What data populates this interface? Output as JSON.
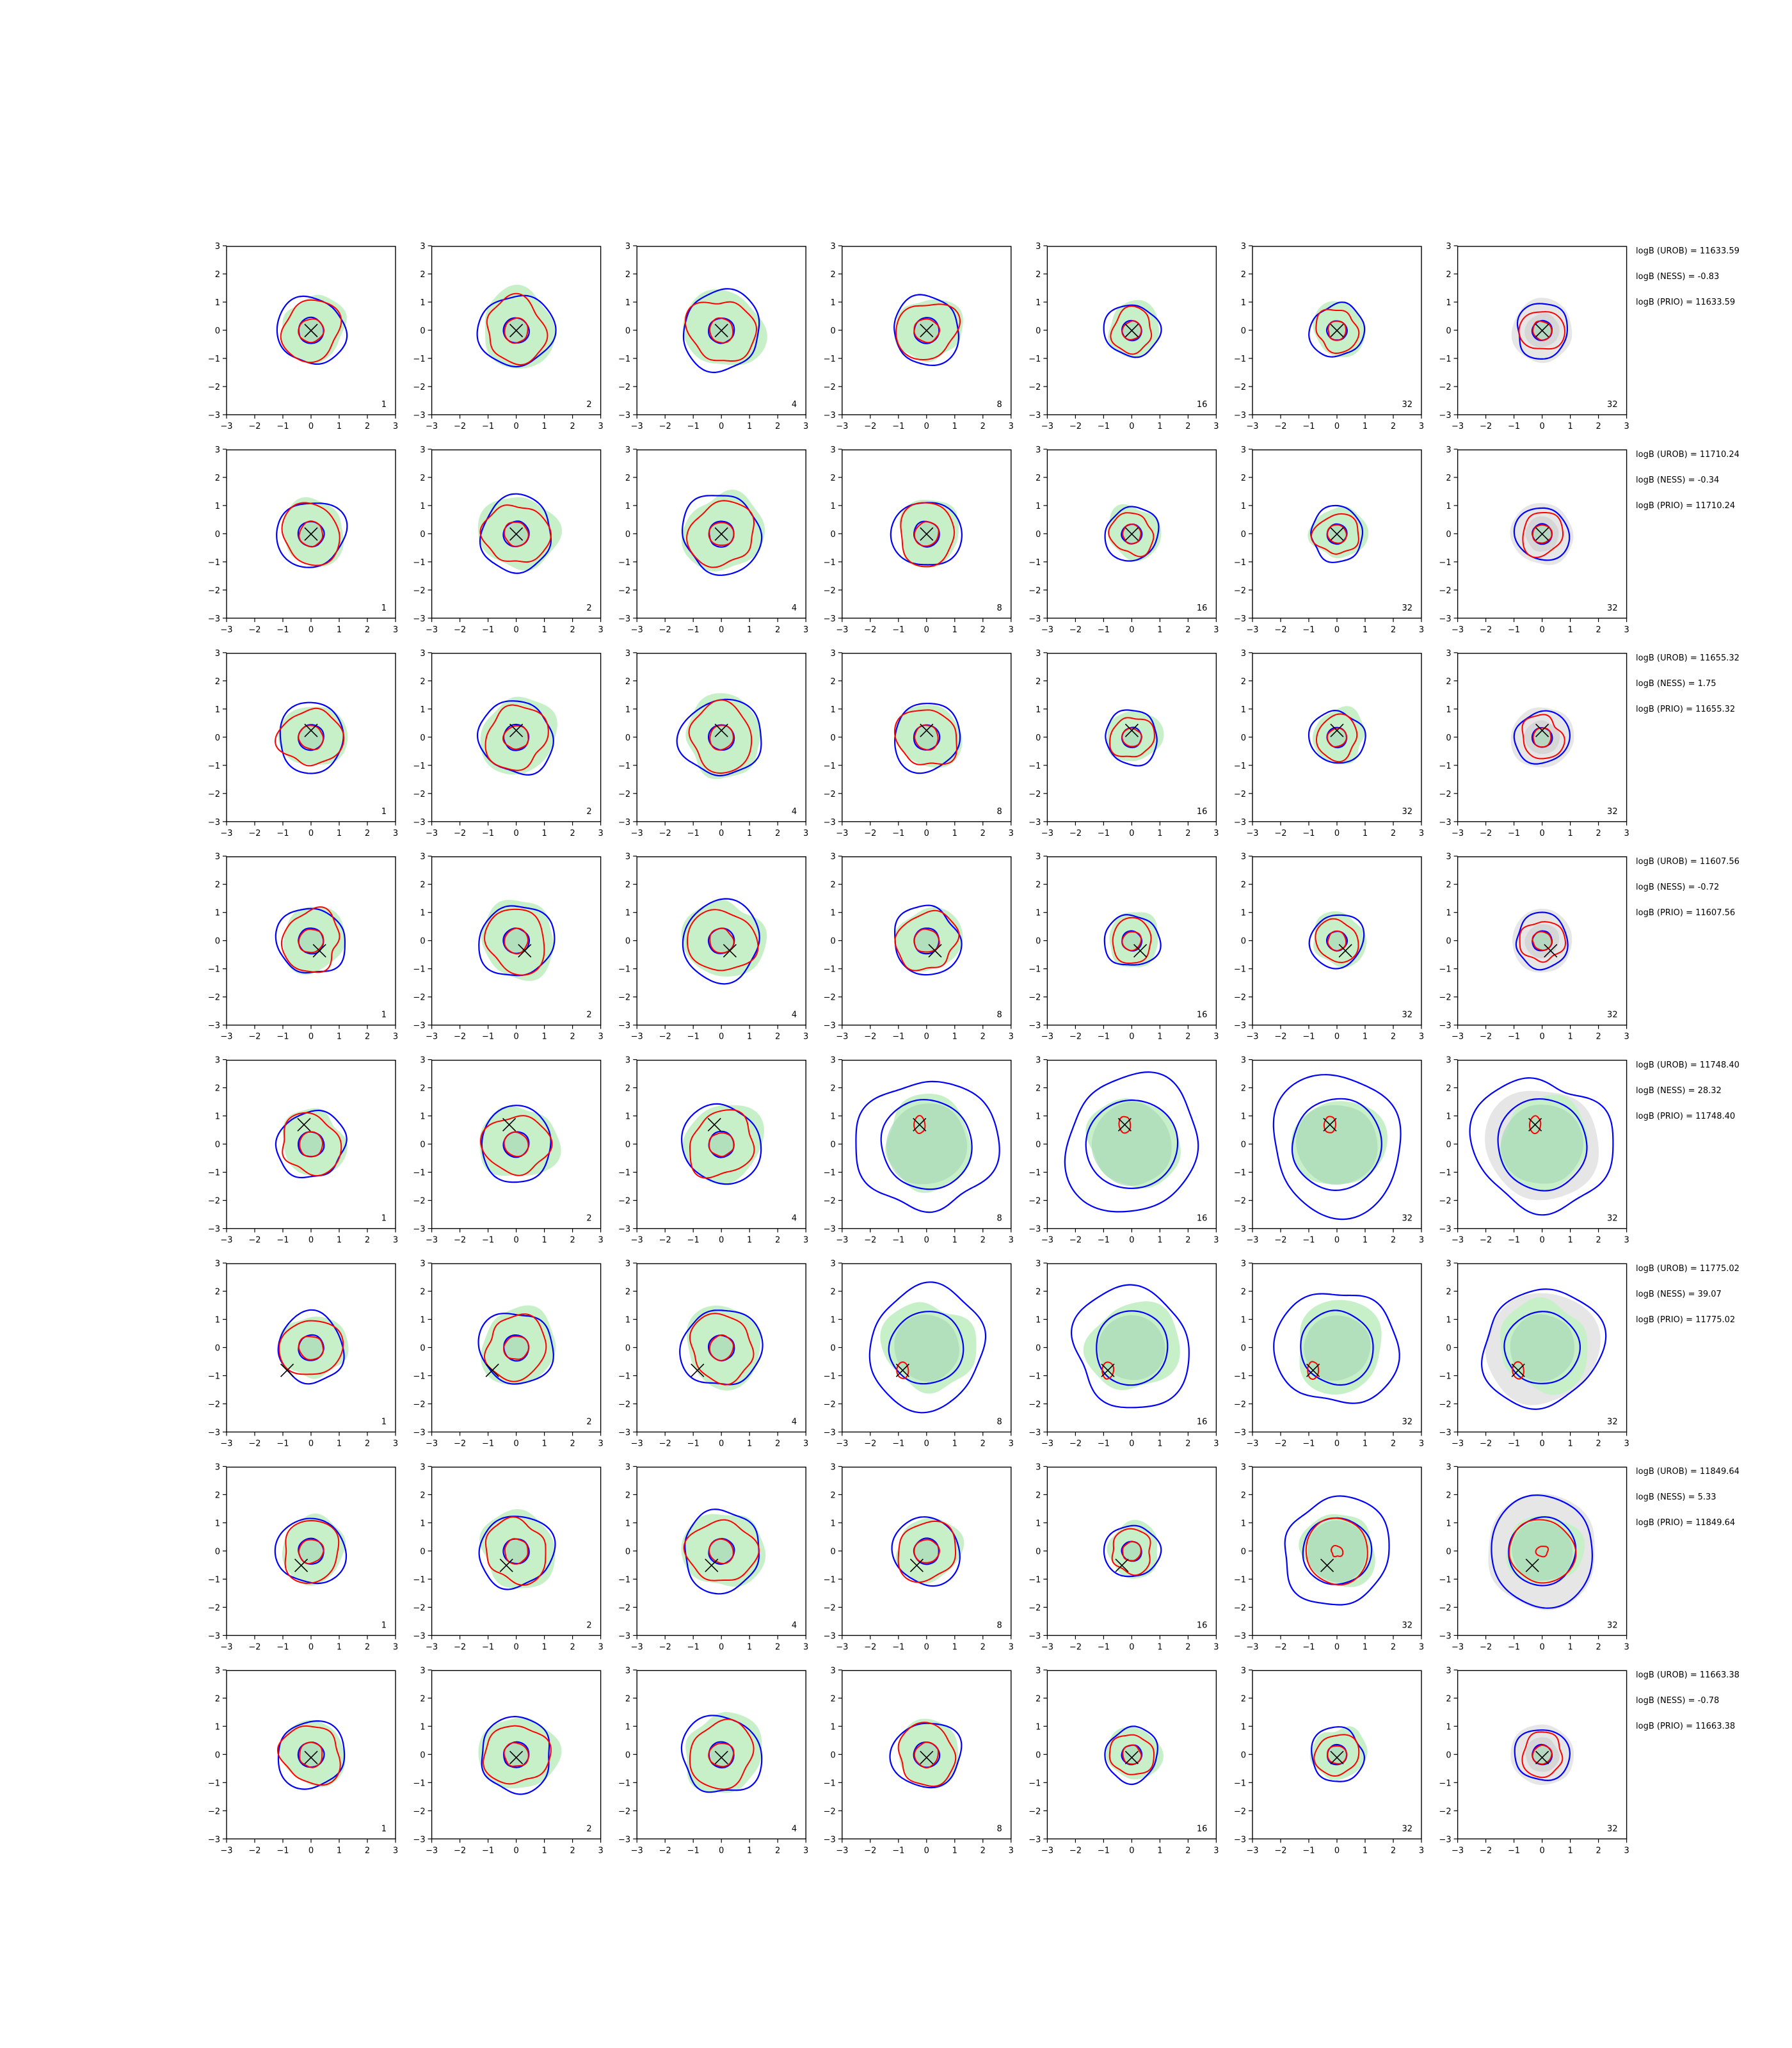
{
  "chart_data": {
    "type": "contour-grid",
    "rows": 8,
    "cols": 7,
    "xlim": [
      -3,
      3
    ],
    "ylim": [
      -3,
      3
    ],
    "ticks": [
      "−3",
      "−2",
      "−1",
      "0",
      "1",
      "2",
      "3"
    ],
    "tick_values": [
      -3,
      -2,
      -1,
      0,
      1,
      2,
      3
    ],
    "panel_labels": [
      "1",
      "2",
      "4",
      "8",
      "16",
      "32",
      "32"
    ],
    "colors": {
      "blue_contour": "#0000ff",
      "red_contour": "#ff0000",
      "green_fill": "#c8f0c8",
      "green_core": "#a8d8b8",
      "gray_fill": "#e6e6e6",
      "marker": "#000000"
    },
    "grid": false,
    "truth_markers": [
      [
        0,
        0
      ],
      [
        0,
        0
      ],
      [
        0,
        0.25
      ],
      [
        0.3,
        -0.35
      ],
      [
        -0.25,
        0.7
      ],
      [
        -0.85,
        -0.8
      ],
      [
        -0.35,
        -0.5
      ],
      [
        0,
        -0.1
      ]
    ],
    "row_stats": [
      {
        "urob": "logB (UROB) = 11633.59",
        "ness": "logB (NESS) = -0.83",
        "prio": "logB (PRIO) = 11633.59"
      },
      {
        "urob": "logB (UROB) = 11710.24",
        "ness": "logB (NESS) = -0.34",
        "prio": "logB (PRIO) = 11710.24"
      },
      {
        "urob": "logB (UROB) = 11655.32",
        "ness": "logB (NESS) = 1.75",
        "prio": "logB (PRIO) = 11655.32"
      },
      {
        "urob": "logB (UROB) = 11607.56",
        "ness": "logB (NESS) = -0.72",
        "prio": "logB (PRIO) = 11607.56"
      },
      {
        "urob": "logB (UROB) = 11748.40",
        "ness": "logB (NESS) = 28.32",
        "prio": "logB (PRIO) = 11748.40"
      },
      {
        "urob": "logB (UROB) = 11775.02",
        "ness": "logB (NESS) = 39.07",
        "prio": "logB (PRIO) = 11775.02"
      },
      {
        "urob": "logB (UROB) = 11849.64",
        "ness": "logB (NESS) = 5.33",
        "prio": "logB (PRIO) = 11849.64"
      },
      {
        "urob": "logB (UROB) = 11663.38",
        "ness": "logB (NESS) = -0.78",
        "prio": "logB (PRIO) = 11663.38"
      }
    ]
  }
}
